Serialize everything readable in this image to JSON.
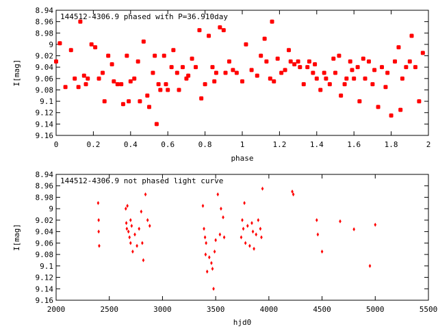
{
  "chart_data": [
    {
      "type": "scatter",
      "title": "144512-4306.9 phased with P=36.910day",
      "xlabel": "phase",
      "ylabel": "I[mag]",
      "xlim": [
        0,
        2
      ],
      "ylim": [
        9.16,
        8.94
      ],
      "y_inverted": true,
      "x_ticks": [
        "0",
        "0.2",
        "0.4",
        "0.6",
        "0.8",
        "1",
        "1.2",
        "1.4",
        "1.6",
        "1.8",
        "2"
      ],
      "y_ticks": [
        "8.94",
        "8.96",
        "8.98",
        "9",
        "9.02",
        "9.04",
        "9.06",
        "9.08",
        "9.1",
        "9.12",
        "9.14",
        "9.16"
      ],
      "marker_color": "#ff0000",
      "series": [
        {
          "x": [
            0.0,
            0.02,
            0.05,
            0.08,
            0.1,
            0.12,
            0.13,
            0.15,
            0.16,
            0.17,
            0.19,
            0.21,
            0.23,
            0.25,
            0.26,
            0.28,
            0.3,
            0.31,
            0.33,
            0.35,
            0.36,
            0.38,
            0.39,
            0.4,
            0.42,
            0.44,
            0.45,
            0.47,
            0.49,
            0.5,
            0.52,
            0.53,
            0.54,
            0.55,
            0.56,
            0.58,
            0.59,
            0.6,
            0.62,
            0.63,
            0.65,
            0.66,
            0.68,
            0.7,
            0.71,
            0.73,
            0.75,
            0.77,
            0.78,
            0.8,
            0.82,
            0.84,
            0.85,
            0.86,
            0.88,
            0.9,
            0.91,
            0.93,
            0.95,
            0.97,
            1.0,
            1.02,
            1.05,
            1.08,
            1.1,
            1.12,
            1.13,
            1.15,
            1.16,
            1.17,
            1.19,
            1.21,
            1.23,
            1.25,
            1.26,
            1.28,
            1.3,
            1.31,
            1.33,
            1.35,
            1.36,
            1.38,
            1.39,
            1.4,
            1.42,
            1.44,
            1.45,
            1.47,
            1.49,
            1.5,
            1.52,
            1.53,
            1.55,
            1.56,
            1.58,
            1.59,
            1.6,
            1.62,
            1.63,
            1.65,
            1.66,
            1.68,
            1.7,
            1.71,
            1.73,
            1.75,
            1.77,
            1.78,
            1.8,
            1.82,
            1.84,
            1.85,
            1.86,
            1.88,
            1.9,
            1.91,
            1.93,
            1.95,
            1.97
          ],
          "y": [
            9.03,
            8.998,
            9.075,
            9.01,
            9.06,
            9.075,
            8.96,
            9.055,
            9.07,
            9.06,
            9.0,
            9.005,
            9.06,
            9.05,
            9.1,
            9.02,
            9.035,
            9.065,
            9.07,
            9.07,
            9.105,
            9.02,
            9.1,
            9.065,
            9.06,
            9.03,
            9.1,
            8.995,
            9.09,
            9.11,
            9.05,
            9.02,
            9.14,
            9.07,
            9.08,
            9.02,
            9.07,
            9.08,
            9.04,
            9.01,
            9.05,
            9.08,
            9.04,
            9.06,
            9.055,
            9.025,
            9.04,
            8.975,
            9.095,
            9.07,
            8.985,
            9.04,
            9.065,
            9.05,
            8.97,
            8.975,
            9.05,
            9.03,
            9.045,
            9.05,
            9.065,
            9.0,
            9.045,
            9.055,
            9.02,
            8.99,
            9.03,
            9.06,
            8.96,
            9.065,
            9.025,
            9.05,
            9.045,
            9.01,
            9.03,
            9.035,
            9.03,
            9.04,
            9.07,
            9.04,
            9.03,
            9.05,
            9.035,
            9.06,
            9.08,
            9.05,
            9.06,
            9.07,
            9.025,
            9.05,
            9.02,
            9.09,
            9.07,
            9.06,
            9.03,
            9.045,
            9.06,
            9.04,
            9.1,
            9.025,
            9.06,
            9.03,
            9.07,
            9.045,
            9.11,
            9.04,
            9.075,
            9.05,
            9.125,
            9.03,
            9.005,
            9.115,
            9.06,
            9.04,
            9.03,
            8.985,
            9.04,
            9.1,
            9.015
          ]
        }
      ]
    },
    {
      "type": "scatter",
      "title": "144512-4306.9 not phased light curve",
      "xlabel": "hjd0",
      "ylabel": "I[mag]",
      "xlim": [
        2000,
        5500
      ],
      "ylim": [
        9.16,
        8.94
      ],
      "y_inverted": true,
      "x_ticks": [
        "2000",
        "2500",
        "3000",
        "3500",
        "4000",
        "4500",
        "5000",
        "5500"
      ],
      "y_ticks": [
        "8.94",
        "8.96",
        "8.98",
        "9",
        "9.02",
        "9.04",
        "9.06",
        "9.08",
        "9.1",
        "9.12",
        "9.14",
        "9.16"
      ],
      "marker_color": "#ff0000",
      "series": [
        {
          "x": [
            2395,
            2400,
            2400,
            2405,
            2655,
            2660,
            2665,
            2670,
            2680,
            2690,
            2700,
            2700,
            2710,
            2720,
            2740,
            2760,
            2780,
            2800,
            2810,
            2820,
            2840,
            2860,
            2880,
            3380,
            3390,
            3400,
            3405,
            3410,
            3420,
            3440,
            3460,
            3470,
            3480,
            3490,
            3500,
            3520,
            3540,
            3550,
            3570,
            3580,
            3740,
            3750,
            3760,
            3770,
            3780,
            3800,
            3820,
            3840,
            3850,
            3860,
            3880,
            3900,
            3920,
            3930,
            3940,
            4220,
            4230,
            4450,
            4460,
            4500,
            4670,
            4800,
            4950,
            5000
          ],
          "y": [
            8.99,
            9.02,
            9.04,
            9.065,
            9.0,
            9.025,
            9.035,
            8.995,
            9.04,
            9.05,
            9.02,
            9.06,
            9.03,
            9.075,
            9.045,
            9.065,
            9.035,
            9.005,
            9.06,
            9.09,
            8.975,
            9.02,
            9.03,
            8.995,
            9.035,
            9.05,
            9.08,
            9.06,
            9.11,
            9.085,
            9.095,
            9.105,
            9.14,
            9.075,
            9.055,
            8.975,
            9.045,
            9.0,
            9.015,
            9.05,
            9.05,
            9.02,
            9.035,
            8.99,
            9.06,
            9.03,
            9.065,
            9.025,
            9.04,
            9.07,
            9.045,
            9.02,
            9.035,
            9.05,
            8.965,
            8.97,
            8.975,
            9.02,
            9.045,
            9.075,
            9.022,
            9.036,
            9.1,
            9.028
          ]
        }
      ]
    }
  ]
}
